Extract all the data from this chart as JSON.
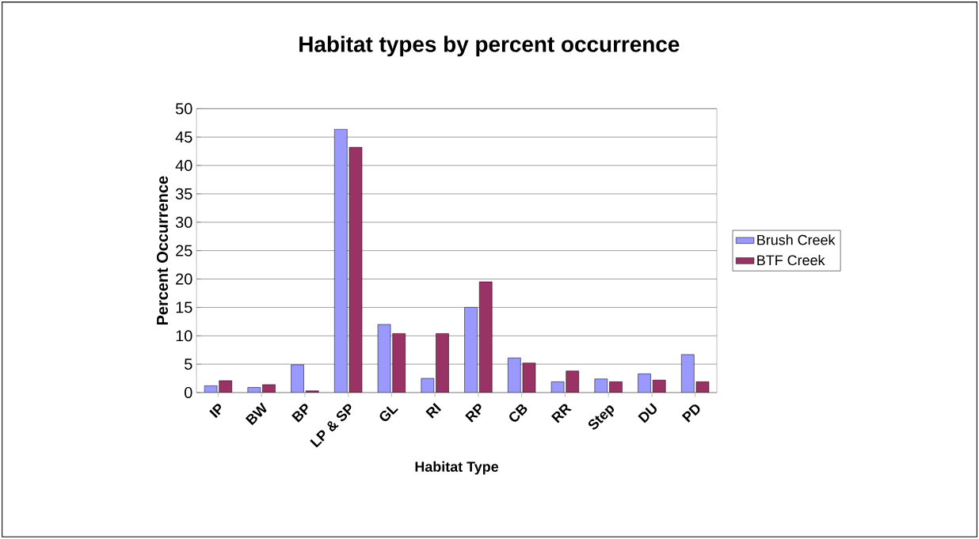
{
  "chart_data": {
    "type": "bar",
    "title": "Habitat types by percent occurrence",
    "xlabel": "Habitat Type",
    "ylabel": "Percent Occurrence",
    "categories": [
      "IP",
      "BW",
      "BP",
      "LP & SP",
      "GL",
      "RI",
      "RP",
      "CB",
      "RR",
      "Step",
      "DU",
      "PD"
    ],
    "series": [
      {
        "name": "Brush Creek",
        "color": "#9999ff",
        "values": [
          1.2,
          0.9,
          4.9,
          46.4,
          12.0,
          2.5,
          15.0,
          6.1,
          1.9,
          2.4,
          3.3,
          6.7
        ]
      },
      {
        "name": "BTF Creek",
        "color": "#993366",
        "values": [
          2.1,
          1.4,
          0.3,
          43.2,
          10.4,
          10.4,
          19.5,
          5.2,
          3.8,
          1.9,
          2.2,
          1.9
        ]
      }
    ],
    "ylim": [
      0,
      50
    ],
    "yticks": [
      0,
      5,
      10,
      15,
      20,
      25,
      30,
      35,
      40,
      45,
      50
    ],
    "grid": "y",
    "legend": "right"
  }
}
